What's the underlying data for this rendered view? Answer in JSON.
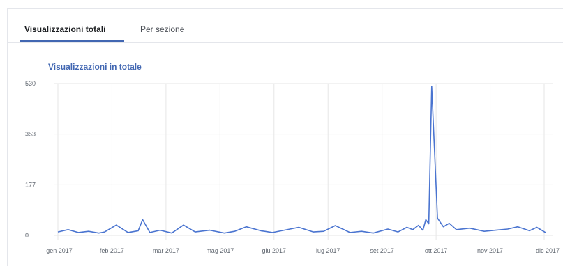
{
  "tabs": [
    {
      "label": "Visualizzazioni totali",
      "active": true
    },
    {
      "label": "Per sezione",
      "active": false
    }
  ],
  "colors": {
    "accent": "#4267b2",
    "line": "#4a74d0",
    "grid": "#e6e6e6"
  },
  "chart_data": {
    "type": "line",
    "title": "Visualizzazioni in totale",
    "xlabel": "",
    "ylabel": "",
    "ylim": [
      0,
      530
    ],
    "yticks": [
      "530",
      "353",
      "177",
      "0"
    ],
    "grid": true,
    "x_tick_labels": [
      "gen 2017",
      "feb 2017",
      "mar 2017",
      "mag 2017",
      "giu 2017",
      "lug 2017",
      "set 2017",
      "ott 2017",
      "nov 2017",
      "dic 2017"
    ],
    "x_range": [
      "2017-01-01",
      "2017-12-01"
    ],
    "series": [
      {
        "x": [
          "2017-01-01",
          "2017-01-08",
          "2017-01-15",
          "2017-01-22",
          "2017-01-29",
          "2017-02-02",
          "2017-02-10",
          "2017-02-18",
          "2017-02-25",
          "2017-02-28",
          "2017-03-05",
          "2017-03-12",
          "2017-03-20",
          "2017-03-28",
          "2017-04-05",
          "2017-04-15",
          "2017-04-25",
          "2017-05-02",
          "2017-05-10",
          "2017-05-20",
          "2017-05-28",
          "2017-06-05",
          "2017-06-15",
          "2017-06-25",
          "2017-07-02",
          "2017-07-10",
          "2017-07-20",
          "2017-07-28",
          "2017-08-05",
          "2017-08-15",
          "2017-08-22",
          "2017-08-28",
          "2017-09-01",
          "2017-09-05",
          "2017-09-08",
          "2017-09-10",
          "2017-09-12",
          "2017-09-14",
          "2017-09-18",
          "2017-09-22",
          "2017-09-26",
          "2017-10-01",
          "2017-10-10",
          "2017-10-20",
          "2017-10-28",
          "2017-11-05",
          "2017-11-12",
          "2017-11-20",
          "2017-11-25",
          "2017-12-01"
        ],
        "y": [
          12,
          20,
          10,
          14,
          8,
          12,
          36,
          10,
          16,
          55,
          10,
          18,
          8,
          36,
          12,
          18,
          8,
          14,
          30,
          16,
          10,
          18,
          28,
          12,
          14,
          34,
          10,
          14,
          8,
          22,
          12,
          28,
          20,
          35,
          18,
          55,
          40,
          520,
          60,
          30,
          42,
          20,
          25,
          14,
          18,
          22,
          30,
          16,
          28,
          10
        ]
      }
    ]
  }
}
